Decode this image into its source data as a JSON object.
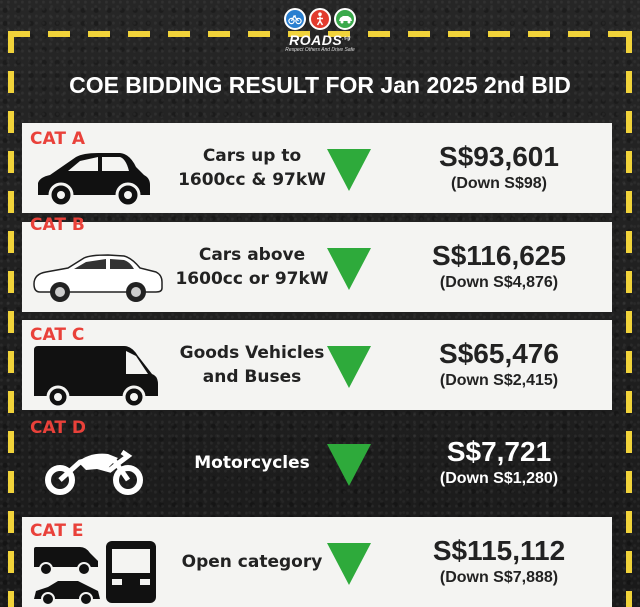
{
  "logo": {
    "name": "ROADS",
    "suffix": ".sg",
    "tagline": "Respect Others And Drive Safe",
    "icon_colors": [
      "#2a7fd0",
      "#e23b2e",
      "#3aa94b"
    ]
  },
  "title": "COE BIDDING RESULT FOR Jan 2025 2nd BID",
  "colors": {
    "accent_yellow": "#f1d33a",
    "category_red": "#e9413a",
    "down_green": "#2eaa3b",
    "card_bg": "#f4f4f2"
  },
  "categories": [
    {
      "label": "CAT A",
      "desc_line1": "Cars up to",
      "desc_line2": "1600cc & 97kW",
      "price": "S$93,601",
      "change": "(Down S$98)",
      "icon": "hatchback-car-icon"
    },
    {
      "label": "CAT B",
      "desc_line1": "Cars above",
      "desc_line2": "1600cc or 97kW",
      "price": "S$116,625",
      "change": "(Down S$4,876)",
      "icon": "sedan-car-icon"
    },
    {
      "label": "CAT C",
      "desc_line1": "Goods Vehicles",
      "desc_line2": "and Buses",
      "price": "S$65,476",
      "change": "(Down S$2,415)",
      "icon": "van-icon"
    },
    {
      "label": "CAT D",
      "desc_line1": "Motorcycles",
      "desc_line2": "",
      "price": "S$7,721",
      "change": "(Down S$1,280)",
      "icon": "motorcycle-icon"
    },
    {
      "label": "CAT E",
      "desc_line1": "Open category",
      "desc_line2": "",
      "price": "S$115,112",
      "change": "(Down S$7,888)",
      "icon": "mixed-vehicles-icon"
    }
  ]
}
